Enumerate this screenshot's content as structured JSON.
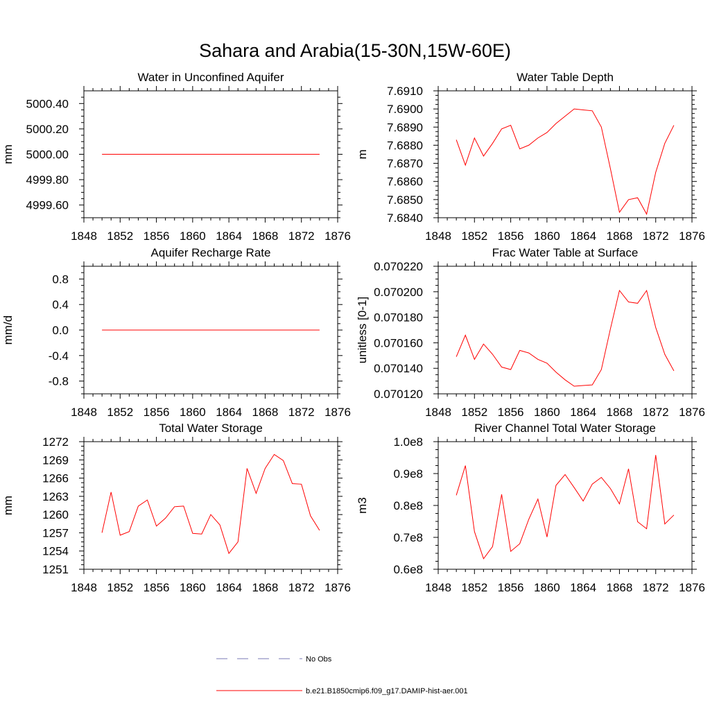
{
  "figure": {
    "title": "Sahara and Arabia(15-30N,15W-60E)"
  },
  "legend": [
    {
      "label": "No Obs",
      "style": "dashed",
      "color": "#7a7ab4"
    },
    {
      "label": "b.e21.B1850cmip6.f09_g17.DAMIP-hist-aer.001",
      "style": "solid",
      "color": "#ff0000"
    }
  ],
  "colors": {
    "series": "#ff0000",
    "axis": "#000000"
  },
  "chart_data": [
    {
      "type": "line",
      "title": "Water in Unconfined Aquifer",
      "ylabel": "mm",
      "xlim": [
        1848,
        1876
      ],
      "xticks": [
        1848,
        1852,
        1856,
        1860,
        1864,
        1868,
        1872,
        1876
      ],
      "ylim": [
        4999.5,
        5000.5
      ],
      "yticks": [
        4999.6,
        4999.8,
        5000.0,
        5000.2,
        5000.4
      ],
      "ytick_labels": [
        "4999.60",
        "4999.80",
        "5000.00",
        "5000.20",
        "5000.40"
      ],
      "x": [
        1850,
        1851,
        1852,
        1853,
        1854,
        1855,
        1856,
        1857,
        1858,
        1859,
        1860,
        1861,
        1862,
        1863,
        1864,
        1865,
        1866,
        1867,
        1868,
        1869,
        1870,
        1871,
        1872,
        1873,
        1874
      ],
      "values": [
        5000,
        5000,
        5000,
        5000,
        5000,
        5000,
        5000,
        5000,
        5000,
        5000,
        5000,
        5000,
        5000,
        5000,
        5000,
        5000,
        5000,
        5000,
        5000,
        5000,
        5000,
        5000,
        5000,
        5000,
        5000
      ]
    },
    {
      "type": "line",
      "title": "Water Table Depth",
      "ylabel": "m",
      "xlim": [
        1848,
        1876
      ],
      "xticks": [
        1848,
        1852,
        1856,
        1860,
        1864,
        1868,
        1872,
        1876
      ],
      "ylim": [
        7.684,
        7.691
      ],
      "yticks": [
        7.684,
        7.685,
        7.686,
        7.687,
        7.688,
        7.689,
        7.69,
        7.691
      ],
      "ytick_labels": [
        "7.6840",
        "7.6850",
        "7.6860",
        "7.6870",
        "7.6880",
        "7.6890",
        "7.6900",
        "7.6910"
      ],
      "x": [
        1850,
        1851,
        1852,
        1853,
        1854,
        1855,
        1856,
        1857,
        1858,
        1859,
        1860,
        1861,
        1862,
        1863,
        1864,
        1865,
        1866,
        1867,
        1868,
        1869,
        1870,
        1871,
        1872,
        1873,
        1874
      ],
      "values": [
        7.6883,
        7.6869,
        7.6884,
        7.6874,
        7.6881,
        7.6889,
        7.6891,
        7.6878,
        7.688,
        7.6884,
        7.6887,
        7.6892,
        7.6896,
        7.69,
        7.68995,
        7.6899,
        7.689,
        7.6867,
        7.6843,
        7.685,
        7.6851,
        7.6842,
        7.6865,
        7.6881,
        7.6891
      ]
    },
    {
      "type": "line",
      "title": "Aquifer Recharge Rate",
      "ylabel": "mm/d",
      "xlim": [
        1848,
        1876
      ],
      "xticks": [
        1848,
        1852,
        1856,
        1860,
        1864,
        1868,
        1872,
        1876
      ],
      "ylim": [
        -1.0,
        1.0
      ],
      "yticks": [
        -0.8,
        -0.4,
        0.0,
        0.4,
        0.8
      ],
      "ytick_labels": [
        "-0.8",
        "-0.4",
        "0.0",
        "0.4",
        "0.8"
      ],
      "x": [
        1850,
        1851,
        1852,
        1853,
        1854,
        1855,
        1856,
        1857,
        1858,
        1859,
        1860,
        1861,
        1862,
        1863,
        1864,
        1865,
        1866,
        1867,
        1868,
        1869,
        1870,
        1871,
        1872,
        1873,
        1874
      ],
      "values": [
        0,
        0,
        0,
        0,
        0,
        0,
        0,
        0,
        0,
        0,
        0,
        0,
        0,
        0,
        0,
        0,
        0,
        0,
        0,
        0,
        0,
        0,
        0,
        0,
        0
      ]
    },
    {
      "type": "line",
      "title": "Frac Water Table at Surface",
      "ylabel": "unitless [0-1]",
      "xlim": [
        1848,
        1876
      ],
      "xticks": [
        1848,
        1852,
        1856,
        1860,
        1864,
        1868,
        1872,
        1876
      ],
      "ylim": [
        0.07012,
        0.07022
      ],
      "yticks": [
        0.07012,
        0.07014,
        0.07016,
        0.07018,
        0.0702,
        0.07022
      ],
      "ytick_labels": [
        "0.070120",
        "0.070140",
        "0.070160",
        "0.070180",
        "0.070200",
        "0.070220"
      ],
      "x": [
        1850,
        1851,
        1852,
        1853,
        1854,
        1855,
        1856,
        1857,
        1858,
        1859,
        1860,
        1861,
        1862,
        1863,
        1864,
        1865,
        1866,
        1867,
        1868,
        1869,
        1870,
        1871,
        1872,
        1873,
        1874
      ],
      "values": [
        0.070149,
        0.070166,
        0.070147,
        0.070159,
        0.070151,
        0.070141,
        0.070139,
        0.070154,
        0.070152,
        0.070147,
        0.070144,
        0.070137,
        0.070131,
        0.070126,
        0.0701265,
        0.070127,
        0.070139,
        0.070171,
        0.070201,
        0.070192,
        0.070191,
        0.070201,
        0.070172,
        0.070151,
        0.070138
      ]
    },
    {
      "type": "line",
      "title": "Total Water Storage",
      "ylabel": "mm",
      "xlim": [
        1848,
        1876
      ],
      "xticks": [
        1848,
        1852,
        1856,
        1860,
        1864,
        1868,
        1872,
        1876
      ],
      "ylim": [
        1251,
        1272
      ],
      "yticks": [
        1251,
        1254,
        1257,
        1260,
        1263,
        1266,
        1269,
        1272
      ],
      "ytick_labels": [
        "1251",
        "1254",
        "1257",
        "1260",
        "1263",
        "1266",
        "1269",
        "1272"
      ],
      "x": [
        1850,
        1851,
        1852,
        1853,
        1854,
        1855,
        1856,
        1857,
        1858,
        1859,
        1860,
        1861,
        1862,
        1863,
        1864,
        1865,
        1866,
        1867,
        1868,
        1869,
        1870,
        1871,
        1872,
        1873,
        1874
      ],
      "values": [
        1257.0,
        1263.7,
        1256.6,
        1257.2,
        1261.4,
        1262.4,
        1258.1,
        1259.4,
        1261.3,
        1261.4,
        1256.9,
        1256.8,
        1260.0,
        1258.3,
        1253.6,
        1255.5,
        1267.6,
        1263.5,
        1267.6,
        1269.9,
        1268.9,
        1265.1,
        1265.0,
        1259.8,
        1257.4
      ]
    },
    {
      "type": "line",
      "title": "River Channel Total Water Storage",
      "ylabel": "m3",
      "xlim": [
        1848,
        1876
      ],
      "xticks": [
        1848,
        1852,
        1856,
        1860,
        1864,
        1868,
        1872,
        1876
      ],
      "ylim": [
        60000000,
        100000000
      ],
      "yticks": [
        60000000,
        70000000,
        80000000,
        90000000,
        100000000
      ],
      "ytick_labels": [
        "0.6e8",
        "0.7e8",
        "0.8e8",
        "0.9e8",
        "1.0e8"
      ],
      "x": [
        1850,
        1851,
        1852,
        1853,
        1854,
        1855,
        1856,
        1857,
        1858,
        1859,
        1860,
        1861,
        1862,
        1863,
        1864,
        1865,
        1866,
        1867,
        1868,
        1869,
        1870,
        1871,
        1872,
        1873,
        1874
      ],
      "values": [
        83200000,
        92500000,
        71800000,
        63300000,
        67100000,
        83500000,
        65600000,
        68000000,
        75700000,
        82000000,
        70100000,
        86300000,
        89700000,
        85600000,
        81400000,
        86700000,
        88800000,
        85300000,
        80500000,
        91500000,
        74900000,
        72700000,
        95800000,
        74200000,
        77000000
      ]
    }
  ]
}
